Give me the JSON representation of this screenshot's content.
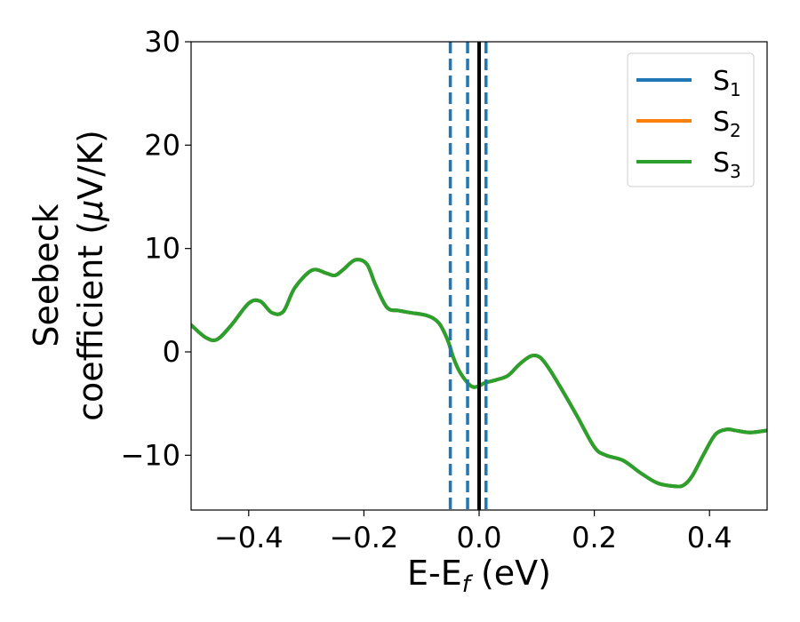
{
  "chart_data": {
    "type": "line",
    "xlabel": {
      "text": "E-E",
      "sub": "f",
      "suffix": " (eV)"
    },
    "ylabel": {
      "line1": "Seebeck",
      "line2_pre": "coefficient  (",
      "line2_mu": "μ",
      "line2_post": "V/K)"
    },
    "xlim": [
      -0.5,
      0.5
    ],
    "ylim": [
      -15.3,
      30
    ],
    "xticks": [
      -0.4,
      -0.2,
      0.0,
      0.2,
      0.4
    ],
    "xtick_labels": [
      "−0.4",
      "−0.2",
      "0.0",
      "0.2",
      "0.4"
    ],
    "yticks": [
      -10,
      0,
      10,
      20,
      30
    ],
    "ytick_labels": [
      "−10",
      "0",
      "10",
      "20",
      "30"
    ],
    "legend_position": "top-right",
    "series": [
      {
        "name": "S",
        "sub": "1",
        "color": "#1f77b4",
        "x": [
          -0.5,
          -0.475,
          -0.455,
          -0.43,
          -0.4,
          -0.38,
          -0.36,
          -0.34,
          -0.32,
          -0.29,
          -0.265,
          -0.25,
          -0.235,
          -0.215,
          -0.195,
          -0.18,
          -0.16,
          -0.14,
          -0.12,
          -0.09,
          -0.07,
          -0.055,
          -0.045,
          -0.035,
          -0.02,
          -0.01,
          0.0,
          0.01,
          0.03,
          0.05,
          0.07,
          0.09,
          0.105,
          0.12,
          0.14,
          0.17,
          0.2,
          0.22,
          0.25,
          0.28,
          0.31,
          0.34,
          0.355,
          0.37,
          0.39,
          0.41,
          0.43,
          0.445,
          0.47,
          0.5
        ],
        "y": [
          2.6,
          1.4,
          1.2,
          2.6,
          4.7,
          4.9,
          3.8,
          3.9,
          6.2,
          7.9,
          7.6,
          7.4,
          8.0,
          8.9,
          8.5,
          6.5,
          4.3,
          4.0,
          3.8,
          3.5,
          2.8,
          1.2,
          -0.5,
          -1.8,
          -3.0,
          -3.4,
          -3.3,
          -3.0,
          -2.7,
          -2.3,
          -1.2,
          -0.4,
          -0.5,
          -1.5,
          -3.3,
          -6.2,
          -9.2,
          -10.0,
          -10.5,
          -11.7,
          -12.7,
          -13.0,
          -12.9,
          -12.0,
          -9.9,
          -8.0,
          -7.5,
          -7.6,
          -7.8,
          -7.6
        ]
      },
      {
        "name": "S",
        "sub": "2",
        "color": "#ff7f0e",
        "x": [
          -0.5,
          -0.475,
          -0.455,
          -0.43,
          -0.4,
          -0.38,
          -0.36,
          -0.34,
          -0.32,
          -0.29,
          -0.265,
          -0.25,
          -0.235,
          -0.215,
          -0.195,
          -0.18,
          -0.16,
          -0.14,
          -0.12,
          -0.09,
          -0.07,
          -0.055,
          -0.045,
          -0.035,
          -0.02,
          -0.01,
          0.0,
          0.01,
          0.03,
          0.05,
          0.07,
          0.09,
          0.105,
          0.12,
          0.14,
          0.17,
          0.2,
          0.22,
          0.25,
          0.28,
          0.31,
          0.34,
          0.355,
          0.37,
          0.39,
          0.41,
          0.43,
          0.445,
          0.47,
          0.5
        ],
        "y": [
          2.6,
          1.4,
          1.2,
          2.6,
          4.7,
          4.9,
          3.8,
          3.9,
          6.2,
          7.9,
          7.6,
          7.4,
          8.0,
          8.9,
          8.5,
          6.5,
          4.3,
          4.0,
          3.8,
          3.5,
          2.8,
          1.2,
          -0.5,
          -1.8,
          -3.0,
          -3.4,
          -3.3,
          -3.0,
          -2.7,
          -2.3,
          -1.2,
          -0.4,
          -0.5,
          -1.5,
          -3.3,
          -6.2,
          -9.2,
          -10.0,
          -10.5,
          -11.7,
          -12.7,
          -13.0,
          -12.9,
          -12.0,
          -9.9,
          -8.0,
          -7.5,
          -7.6,
          -7.8,
          -7.6
        ]
      },
      {
        "name": "S",
        "sub": "3",
        "color": "#2ca02c",
        "x": [
          -0.5,
          -0.475,
          -0.455,
          -0.43,
          -0.4,
          -0.38,
          -0.36,
          -0.34,
          -0.32,
          -0.29,
          -0.265,
          -0.25,
          -0.235,
          -0.215,
          -0.195,
          -0.18,
          -0.16,
          -0.14,
          -0.12,
          -0.09,
          -0.07,
          -0.055,
          -0.045,
          -0.035,
          -0.02,
          -0.01,
          0.0,
          0.01,
          0.03,
          0.05,
          0.07,
          0.09,
          0.105,
          0.12,
          0.14,
          0.17,
          0.2,
          0.22,
          0.25,
          0.28,
          0.31,
          0.34,
          0.355,
          0.37,
          0.39,
          0.41,
          0.43,
          0.445,
          0.47,
          0.5
        ],
        "y": [
          2.6,
          1.4,
          1.2,
          2.6,
          4.7,
          4.9,
          3.8,
          3.9,
          6.2,
          7.9,
          7.6,
          7.4,
          8.0,
          8.9,
          8.5,
          6.5,
          4.3,
          4.0,
          3.8,
          3.5,
          2.8,
          1.2,
          -0.5,
          -1.8,
          -3.0,
          -3.4,
          -3.3,
          -3.0,
          -2.7,
          -2.3,
          -1.2,
          -0.4,
          -0.5,
          -1.5,
          -3.3,
          -6.2,
          -9.2,
          -10.0,
          -10.5,
          -11.7,
          -12.7,
          -13.0,
          -12.9,
          -12.0,
          -9.9,
          -8.0,
          -7.5,
          -7.6,
          -7.8,
          -7.6
        ]
      }
    ],
    "vlines": [
      {
        "x": -0.05,
        "style": "dashed",
        "color": "#1f77b4"
      },
      {
        "x": -0.02,
        "style": "dashed",
        "color": "#1f77b4"
      },
      {
        "x": 0.012,
        "style": "dashed",
        "color": "#1f77b4"
      },
      {
        "x": 0.0,
        "style": "solid",
        "color": "#000000"
      }
    ]
  }
}
